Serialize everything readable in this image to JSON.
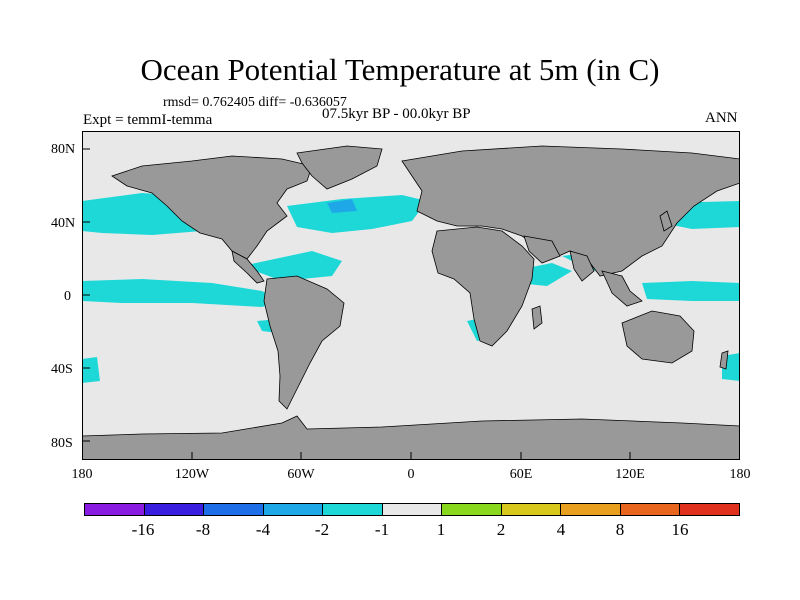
{
  "title": "Ocean Potential Temperature at 5m (in C)",
  "stats": "rmsd= 0.762405 diff= -0.636057",
  "expt": "Expt = temmI-temma",
  "period": "07.5kyr BP - 00.0kyr BP",
  "season": "ANN",
  "lat_labels": [
    "80N",
    "40N",
    "0",
    "40S",
    "80S"
  ],
  "lon_labels": [
    "180",
    "120W",
    "60W",
    "0",
    "60E",
    "120E",
    "180"
  ],
  "colorbar": {
    "labels": [
      "-16",
      "-8",
      "-4",
      "-2",
      "-1",
      "1",
      "2",
      "4",
      "8",
      "16"
    ],
    "colors": [
      "#8a1be0",
      "#3a1ee0",
      "#1e6ee8",
      "#1ea8e8",
      "#1ed8d8",
      "#e8e8e8",
      "#8ad81e",
      "#d8c81e",
      "#e8a01e",
      "#e8661e",
      "#e0301e"
    ]
  },
  "colors": {
    "ocean": "#e8e8e8",
    "land": "#999999",
    "anomaly_weak": "#1ed8d8",
    "anomaly_mid": "#1ea8e8",
    "anomaly_strong": "#1e6ee8"
  }
}
